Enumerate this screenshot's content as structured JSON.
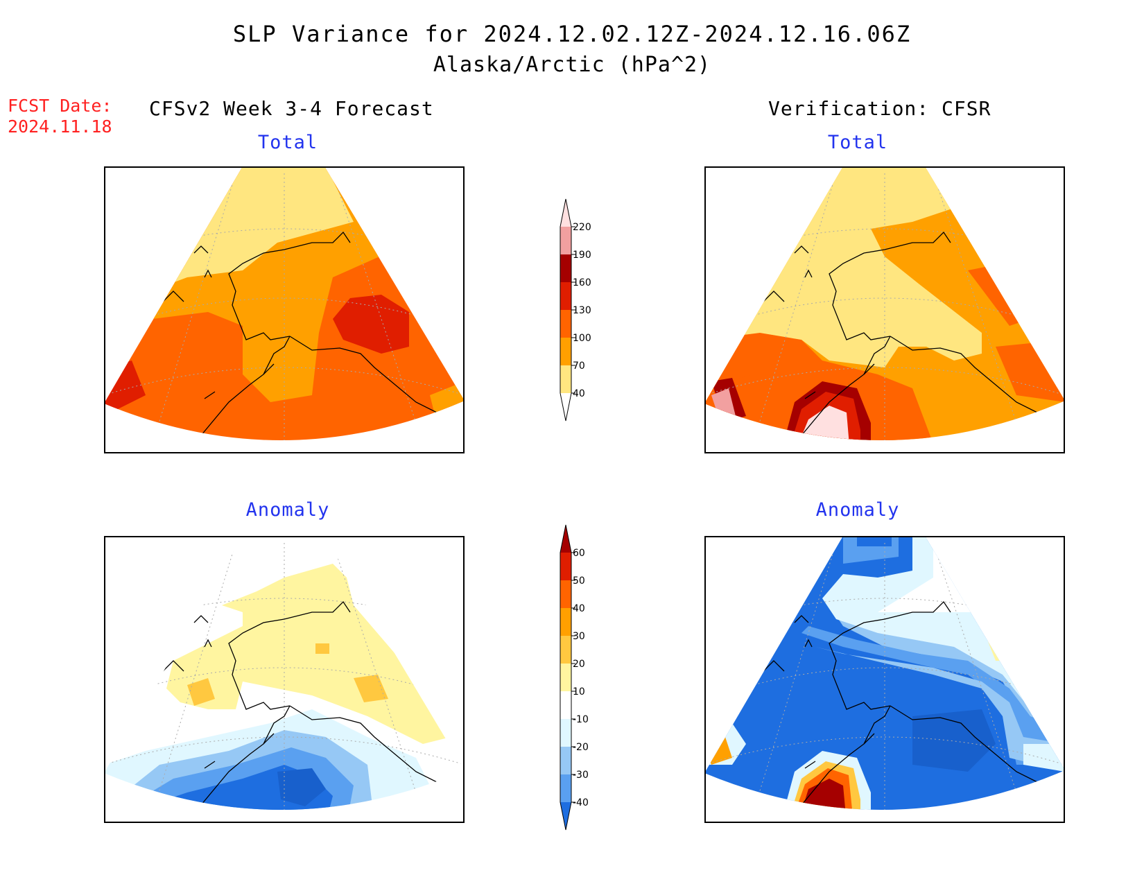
{
  "header": {
    "title": "SLP Variance for 2024.12.02.12Z-2024.12.16.06Z",
    "subtitle": "Alaska/Arctic (hPa^2)"
  },
  "forecast_date": {
    "label": "FCST Date:",
    "value": "2024.11.18"
  },
  "columns": {
    "left": "CFSv2 Week 3-4 Forecast",
    "right": "Verification: CFSR"
  },
  "panels": {
    "forecast_total": "Total",
    "verification_total": "Total",
    "forecast_anomaly": "Anomaly",
    "verification_anomaly": "Anomaly"
  },
  "colorbars": {
    "total": {
      "ticks": [
        "40",
        "70",
        "100",
        "130",
        "160",
        "190",
        "220"
      ],
      "colors": [
        "#ffffff",
        "#ffe680",
        "#ffa000",
        "#ff6400",
        "#e01e00",
        "#a50000",
        "#f2a0a0",
        "#ffe0e0"
      ]
    },
    "anomaly": {
      "ticks": [
        "-40",
        "-30",
        "-20",
        "-10",
        "10",
        "20",
        "30",
        "40",
        "50",
        "60"
      ],
      "colors": [
        "#1e6ee0",
        "#5aa0f0",
        "#96c8f5",
        "#e0f7ff",
        "#ffffff",
        "#fff5a0",
        "#ffc840",
        "#ffa000",
        "#ff6400",
        "#e01e00",
        "#a50000"
      ]
    }
  },
  "colors": {
    "fcst_date": "#ff2020",
    "panel_titles": "#2233ee"
  }
}
